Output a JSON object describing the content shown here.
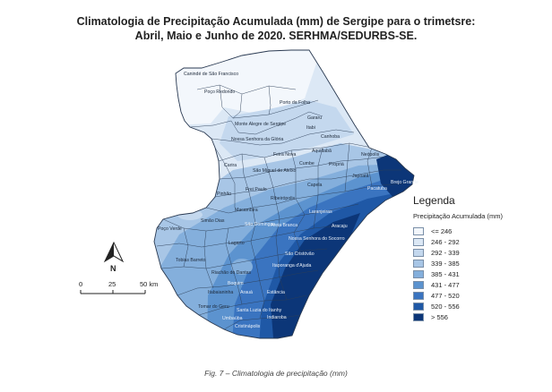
{
  "title": {
    "line1": "Climatologia de Precipitação Acumulada (mm) de Sergipe para o trimetsre:",
    "line2": "Abril, Maio e Junho de 2020. SERHMA/SEDURBS-SE."
  },
  "legend": {
    "title": "Legenda",
    "subtitle": "Precipitação Acumulada (mm)",
    "classes": [
      {
        "label": "<= 246",
        "color": "#f3f7fc"
      },
      {
        "label": "246 - 292",
        "color": "#dce8f5"
      },
      {
        "label": "292 - 339",
        "color": "#c4d8ee"
      },
      {
        "label": "339 - 385",
        "color": "#a8c6e6"
      },
      {
        "label": "385 - 431",
        "color": "#84afdc"
      },
      {
        "label": "431 - 477",
        "color": "#5c93cf"
      },
      {
        "label": "477 - 520",
        "color": "#3a74c0"
      },
      {
        "label": "520 - 556",
        "color": "#1f58a6"
      },
      {
        "label": "> 556",
        "color": "#0c3678"
      }
    ]
  },
  "scale": {
    "labels": [
      "0",
      "25",
      "50 km"
    ]
  },
  "north": {
    "label": "N"
  },
  "municipalities": [
    "Canindé de São Francisco",
    "Poço Redondo",
    "Porto da Folha",
    "Monte Alegre de Sergipe",
    "Gararu",
    "Itabi",
    "Nossa Senhora da Glória",
    "Canhoba",
    "Feira Nova",
    "Aquidabã",
    "Neópolis",
    "Carira",
    "São Miguel do Aleixo",
    "Cumbe",
    "Propriá",
    "Japoatã",
    "Brejo Grande",
    "Frei Paulo",
    "Capela",
    "Pacatuba",
    "Pinhão",
    "Ribeirópolis",
    "Macambira",
    "Simão Dias",
    "Laranjeiras",
    "Poço Verde",
    "São Domingos",
    "Areia Branca",
    "Aracaju",
    "Lagarto",
    "Nossa Senhora do Socorro",
    "Tobias Barreto",
    "São Cristóvão",
    "Itaporanga d'Ajuda",
    "Riachão do Dantas",
    "Boquim",
    "Itabaianinha",
    "Arauá",
    "Estância",
    "Tomar do Geru",
    "Santa Luzia do Itanhy",
    "Umbaúba",
    "Indiaroba",
    "Cristinápolis"
  ],
  "caption": "Fig. 7 – Climatologia de precipitação (mm)"
}
